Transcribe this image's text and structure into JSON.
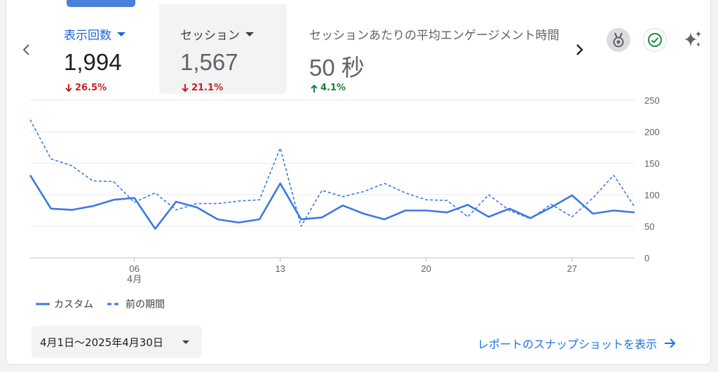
{
  "metrics": [
    {
      "label": "表示回数",
      "value": "1,994",
      "delta": "26.5%",
      "direction": "down"
    },
    {
      "label": "セッション",
      "value": "1,567",
      "delta": "21.1%",
      "direction": "down"
    },
    {
      "label": "セッションあたりの平均エンゲージメント時間",
      "value": "50 秒",
      "delta": "4.1%",
      "direction": "up"
    }
  ],
  "icons": {
    "prev": "chevron-left-icon",
    "next": "chevron-right-icon",
    "medal": "medal-icon",
    "check": "check-circle-icon",
    "insights": "sparkle-icon"
  },
  "colors": {
    "accent": "#1a73e8",
    "series": "#3b78e7",
    "negative": "#c5221f",
    "positive": "#188038"
  },
  "chart_data": {
    "type": "line",
    "x": [
      1,
      2,
      3,
      4,
      5,
      6,
      7,
      8,
      9,
      10,
      11,
      12,
      13,
      14,
      15,
      16,
      17,
      18,
      19,
      20,
      21,
      22,
      23,
      24,
      25,
      26,
      27,
      28,
      29,
      30
    ],
    "x_ticks": [
      {
        "value": 6,
        "label": "06",
        "sublabel": "4月"
      },
      {
        "value": 13,
        "label": "13",
        "sublabel": ""
      },
      {
        "value": 20,
        "label": "20",
        "sublabel": ""
      },
      {
        "value": 27,
        "label": "27",
        "sublabel": ""
      }
    ],
    "y_ticks": [
      0,
      50,
      100,
      150,
      200,
      250
    ],
    "ylim": [
      0,
      250
    ],
    "y_axis_position": "right",
    "grid": true,
    "legend_position": "bottom-left",
    "series": [
      {
        "name": "カスタム",
        "style": "solid",
        "values": [
          131,
          78,
          76,
          82,
          92,
          95,
          46,
          89,
          80,
          61,
          56,
          61,
          118,
          61,
          64,
          83,
          70,
          61,
          75,
          75,
          72,
          84,
          65,
          78,
          63,
          80,
          99,
          70,
          75,
          72
        ]
      },
      {
        "name": "前の期間",
        "style": "dashed",
        "values": [
          219,
          157,
          146,
          122,
          121,
          88,
          103,
          76,
          86,
          86,
          90,
          92,
          174,
          50,
          107,
          97,
          105,
          118,
          103,
          92,
          91,
          65,
          100,
          75,
          62,
          85,
          65,
          95,
          131,
          81
        ]
      }
    ]
  },
  "footer": {
    "date_range": "4月1日〜2025年4月30日",
    "report_link": "レポートのスナップショットを表示"
  }
}
